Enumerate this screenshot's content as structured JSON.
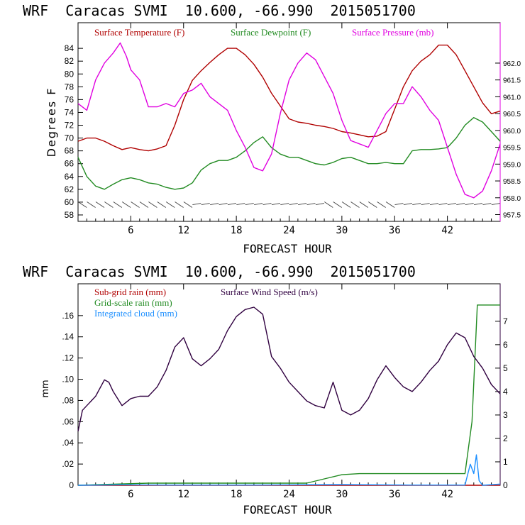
{
  "colors": {
    "temperature": "#b00000",
    "dewpoint": "#228b22",
    "pressure": "#e000e0",
    "subgrid": "#b00000",
    "wind": "#300040",
    "gridscale": "#228b22",
    "cloud": "#1e90ff"
  },
  "chart_data": [
    {
      "type": "line",
      "title": "WRF  Caracas SVMI  10.600, -66.990  2015051700",
      "xlabel": "FORECAST HOUR",
      "ylabel": "Degrees F",
      "xlim": [
        0,
        48
      ],
      "x_ticks": [
        "6",
        "12",
        "18",
        "24",
        "30",
        "36",
        "42"
      ],
      "ylim": [
        57,
        88
      ],
      "y_ticks": [
        "58",
        "60",
        "62",
        "64",
        "66",
        "68",
        "70",
        "72",
        "74",
        "76",
        "78",
        "80",
        "82",
        "84"
      ],
      "y2lim": [
        957.3,
        963.2
      ],
      "y2_ticks": [
        "957.5",
        "958.0",
        "958.5",
        "959.0",
        "959.5",
        "960.0",
        "960.5",
        "961.0",
        "961.5",
        "962.0"
      ],
      "legend": [
        "Surface Temperature (F)",
        "Surface Dewpoint (F)",
        "Surface Pressure (mb)"
      ],
      "series": [
        {
          "name": "Surface Temperature (F)",
          "axis": "left",
          "points": [
            [
              0,
              69.5
            ],
            [
              1,
              70
            ],
            [
              2,
              70
            ],
            [
              3,
              69.5
            ],
            [
              4,
              68.8
            ],
            [
              5,
              68.2
            ],
            [
              6,
              68.5
            ],
            [
              7,
              68.2
            ],
            [
              8,
              68
            ],
            [
              9,
              68.3
            ],
            [
              10,
              68.8
            ],
            [
              11,
              72
            ],
            [
              12,
              76
            ],
            [
              13,
              79
            ],
            [
              14,
              80.5
            ],
            [
              15,
              81.8
            ],
            [
              16,
              83
            ],
            [
              17,
              84
            ],
            [
              18,
              84
            ],
            [
              19,
              83
            ],
            [
              20,
              81.5
            ],
            [
              21,
              79.5
            ],
            [
              22,
              77
            ],
            [
              23,
              75
            ],
            [
              24,
              73
            ],
            [
              25,
              72.5
            ],
            [
              26,
              72.3
            ],
            [
              27,
              72
            ],
            [
              28,
              71.8
            ],
            [
              29,
              71.5
            ],
            [
              30,
              71
            ],
            [
              31,
              70.8
            ],
            [
              32,
              70.5
            ],
            [
              33,
              70.2
            ],
            [
              34,
              70.3
            ],
            [
              35,
              71
            ],
            [
              36,
              74.5
            ],
            [
              37,
              78
            ],
            [
              38,
              80.5
            ],
            [
              39,
              82
            ],
            [
              40,
              83
            ],
            [
              41,
              84.5
            ],
            [
              42,
              84.5
            ],
            [
              43,
              83
            ],
            [
              44,
              80.5
            ],
            [
              45,
              78
            ],
            [
              46,
              75.5
            ],
            [
              47,
              73.8
            ],
            [
              48,
              74.2
            ]
          ]
        },
        {
          "name": "Surface Dewpoint (F)",
          "axis": "left",
          "points": [
            [
              0,
              67
            ],
            [
              1,
              64
            ],
            [
              2,
              62.5
            ],
            [
              3,
              62
            ],
            [
              4,
              62.8
            ],
            [
              5,
              63.5
            ],
            [
              6,
              63.8
            ],
            [
              7,
              63.5
            ],
            [
              8,
              63
            ],
            [
              9,
              62.8
            ],
            [
              10,
              62.3
            ],
            [
              11,
              62
            ],
            [
              12,
              62.2
            ],
            [
              13,
              63
            ],
            [
              14,
              65
            ],
            [
              15,
              66
            ],
            [
              16,
              66.5
            ],
            [
              17,
              66.5
            ],
            [
              18,
              67
            ],
            [
              19,
              68
            ],
            [
              20,
              69.3
            ],
            [
              21,
              70.2
            ],
            [
              22,
              68.5
            ],
            [
              23,
              67.5
            ],
            [
              24,
              67
            ],
            [
              25,
              67
            ],
            [
              26,
              66.5
            ],
            [
              27,
              66
            ],
            [
              28,
              65.8
            ],
            [
              29,
              66.2
            ],
            [
              30,
              66.8
            ],
            [
              31,
              67
            ],
            [
              32,
              66.5
            ],
            [
              33,
              66
            ],
            [
              34,
              66
            ],
            [
              35,
              66.2
            ],
            [
              36,
              66
            ],
            [
              37,
              66
            ],
            [
              38,
              68
            ],
            [
              39,
              68.2
            ],
            [
              40,
              68.2
            ],
            [
              41,
              68.3
            ],
            [
              42,
              68.5
            ],
            [
              43,
              70
            ],
            [
              44,
              72
            ],
            [
              45,
              73.2
            ],
            [
              46,
              72.5
            ],
            [
              47,
              71
            ],
            [
              48,
              69.5
            ]
          ]
        },
        {
          "name": "Surface Pressure (mb)",
          "axis": "right",
          "points": [
            [
              0,
              960.8
            ],
            [
              1,
              960.6
            ],
            [
              2,
              961.5
            ],
            [
              3,
              962.0
            ],
            [
              4,
              962.3
            ],
            [
              4.8,
              962.6
            ],
            [
              5.5,
              962.2
            ],
            [
              6,
              961.8
            ],
            [
              7,
              961.5
            ],
            [
              8,
              960.7
            ],
            [
              9,
              960.7
            ],
            [
              10,
              960.8
            ],
            [
              11,
              960.7
            ],
            [
              12,
              961.1
            ],
            [
              13,
              961.2
            ],
            [
              14,
              961.4
            ],
            [
              15,
              961.0
            ],
            [
              16,
              960.8
            ],
            [
              17,
              960.6
            ],
            [
              18,
              960.0
            ],
            [
              19,
              959.5
            ],
            [
              20,
              958.9
            ],
            [
              21,
              958.8
            ],
            [
              22,
              959.3
            ],
            [
              23,
              960.5
            ],
            [
              24,
              961.5
            ],
            [
              25,
              962.0
            ],
            [
              26,
              962.3
            ],
            [
              27,
              962.1
            ],
            [
              28,
              961.6
            ],
            [
              29,
              961.1
            ],
            [
              30,
              960.3
            ],
            [
              31,
              959.7
            ],
            [
              32,
              959.6
            ],
            [
              33,
              959.5
            ],
            [
              34,
              960.0
            ],
            [
              35,
              960.5
            ],
            [
              36,
              960.8
            ],
            [
              37,
              960.8
            ],
            [
              38,
              961.3
            ],
            [
              39,
              961.0
            ],
            [
              40,
              960.6
            ],
            [
              41,
              960.3
            ],
            [
              42,
              959.5
            ],
            [
              43,
              958.7
            ],
            [
              44,
              958.1
            ],
            [
              45,
              958.0
            ],
            [
              46,
              958.2
            ],
            [
              47,
              958.8
            ],
            [
              48,
              959.6
            ]
          ]
        }
      ]
    },
    {
      "type": "line",
      "title": "WRF  Caracas SVMI  10.600, -66.990  2015051700",
      "xlabel": "FORECAST HOUR",
      "ylabel": "mm",
      "xlim": [
        0,
        48
      ],
      "x_ticks": [
        "6",
        "12",
        "18",
        "24",
        "30",
        "36",
        "42"
      ],
      "ylim": [
        0,
        0.19
      ],
      "y_ticks": [
        "0",
        ".02",
        ".04",
        ".06",
        ".08",
        ".10",
        ".12",
        ".14",
        ".16"
      ],
      "y2lim": [
        0,
        8.6
      ],
      "y2_ticks": [
        "0",
        "1",
        "2",
        "3",
        "4",
        "5",
        "6",
        "7"
      ],
      "legend": [
        "Sub-grid rain (mm)",
        "Grid-scale rain (mm)",
        "Integrated cloud (mm)",
        "Surface Wind Speed (m/s)"
      ],
      "series": [
        {
          "name": "Sub-grid rain (mm)",
          "axis": "left",
          "points": [
            [
              0,
              0
            ],
            [
              48,
              0
            ]
          ]
        },
        {
          "name": "Grid-scale rain (mm)",
          "axis": "left",
          "points": [
            [
              0,
              0
            ],
            [
              4,
              0.001
            ],
            [
              8,
              0.002
            ],
            [
              20,
              0.002
            ],
            [
              26,
              0.002
            ],
            [
              28,
              0.006
            ],
            [
              30,
              0.01
            ],
            [
              32,
              0.011
            ],
            [
              36,
              0.011
            ],
            [
              42,
              0.011
            ],
            [
              44,
              0.011
            ],
            [
              44.8,
              0.06
            ],
            [
              45.4,
              0.17
            ],
            [
              46,
              0.17
            ],
            [
              48,
              0.17
            ]
          ]
        },
        {
          "name": "Integrated cloud (mm)",
          "axis": "right",
          "points": [
            [
              0,
              0
            ],
            [
              5,
              0.02
            ],
            [
              10,
              0.01
            ],
            [
              20,
              0.01
            ],
            [
              30,
              0.03
            ],
            [
              38,
              0.01
            ],
            [
              44,
              0.01
            ],
            [
              44.6,
              0.9
            ],
            [
              45,
              0.5
            ],
            [
              45.3,
              1.3
            ],
            [
              45.6,
              0.2
            ],
            [
              46,
              0
            ],
            [
              48,
              0.05
            ]
          ]
        },
        {
          "name": "Surface Wind Speed (m/s)",
          "axis": "right",
          "points": [
            [
              0,
              2.3
            ],
            [
              0.5,
              3.2
            ],
            [
              1,
              3.4
            ],
            [
              2,
              3.8
            ],
            [
              3,
              4.5
            ],
            [
              3.5,
              4.4
            ],
            [
              4,
              4.0
            ],
            [
              5,
              3.4
            ],
            [
              6,
              3.7
            ],
            [
              7,
              3.8
            ],
            [
              8,
              3.8
            ],
            [
              9,
              4.2
            ],
            [
              10,
              4.9
            ],
            [
              11,
              5.9
            ],
            [
              12,
              6.3
            ],
            [
              13,
              5.4
            ],
            [
              14,
              5.1
            ],
            [
              15,
              5.4
            ],
            [
              16,
              5.8
            ],
            [
              17,
              6.6
            ],
            [
              18,
              7.2
            ],
            [
              19,
              7.5
            ],
            [
              20,
              7.6
            ],
            [
              21,
              7.3
            ],
            [
              22,
              5.5
            ],
            [
              23,
              5.0
            ],
            [
              24,
              4.4
            ],
            [
              25,
              4.0
            ],
            [
              26,
              3.6
            ],
            [
              27,
              3.4
            ],
            [
              28,
              3.3
            ],
            [
              29,
              4.4
            ],
            [
              30,
              3.2
            ],
            [
              31,
              3.0
            ],
            [
              32,
              3.2
            ],
            [
              33,
              3.7
            ],
            [
              34,
              4.5
            ],
            [
              35,
              5.1
            ],
            [
              36,
              4.6
            ],
            [
              37,
              4.2
            ],
            [
              38,
              4.0
            ],
            [
              39,
              4.4
            ],
            [
              40,
              4.9
            ],
            [
              41,
              5.3
            ],
            [
              42,
              6.0
            ],
            [
              43,
              6.5
            ],
            [
              44,
              6.3
            ],
            [
              45,
              5.5
            ],
            [
              46,
              5.0
            ],
            [
              47,
              4.3
            ],
            [
              48,
              3.9
            ]
          ]
        }
      ]
    }
  ]
}
